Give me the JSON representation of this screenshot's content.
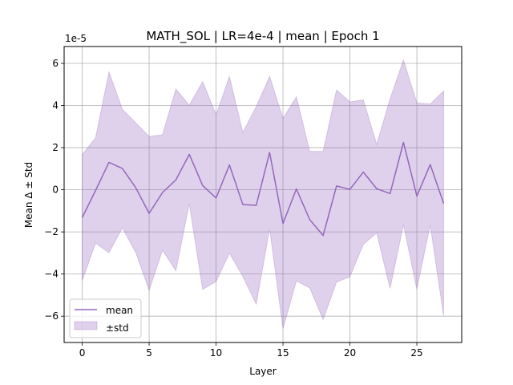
{
  "chart_data": {
    "type": "line",
    "title": "MATH_SOL | LR=4e-4 | mean | Epoch 1",
    "xlabel": "Layer",
    "ylabel": "Mean Δ ± Std",
    "y_offset_text": "1e-5",
    "xlim": [
      -1.35,
      28.35
    ],
    "ylim": [
      -7.25,
      6.8
    ],
    "xticks": [
      0,
      5,
      10,
      15,
      20,
      25
    ],
    "yticks": [
      -6,
      -4,
      -2,
      0,
      2,
      4,
      6
    ],
    "grid": true,
    "legend_position": "lower-left",
    "colors": {
      "line": "#9467bd",
      "band": "#9467bd",
      "grid": "#b0b0b0"
    },
    "x": [
      0,
      1,
      2,
      3,
      4,
      5,
      6,
      7,
      8,
      9,
      10,
      11,
      12,
      13,
      14,
      15,
      16,
      17,
      18,
      19,
      20,
      21,
      22,
      23,
      24,
      25,
      26,
      27
    ],
    "series": [
      {
        "name": "mean",
        "values": [
          -1.32,
          -0.03,
          1.3,
          1.01,
          0.1,
          -1.12,
          -0.13,
          0.47,
          1.68,
          0.2,
          -0.39,
          1.18,
          -0.7,
          -0.74,
          1.77,
          -1.6,
          0.04,
          -1.42,
          -2.17,
          0.18,
          0.02,
          0.84,
          0.05,
          -0.18,
          2.25,
          -0.3,
          1.2,
          -0.65
        ]
      }
    ],
    "band": {
      "name": "±std",
      "upper": [
        1.67,
        2.47,
        5.59,
        3.82,
        3.18,
        2.53,
        2.61,
        4.78,
        4.02,
        5.13,
        3.57,
        5.37,
        2.72,
        3.95,
        5.38,
        3.39,
        4.41,
        1.82,
        1.82,
        4.74,
        4.17,
        4.27,
        2.15,
        4.32,
        6.16,
        4.12,
        4.07,
        4.69
      ],
      "lower": [
        -4.31,
        -2.53,
        -2.99,
        -1.8,
        -2.98,
        -4.77,
        -2.87,
        -3.84,
        -0.66,
        -4.73,
        -4.35,
        -3.01,
        -4.12,
        -5.43,
        -1.84,
        -6.59,
        -4.33,
        -4.66,
        -6.16,
        -4.38,
        -4.13,
        -2.59,
        -2.05,
        -4.68,
        -1.66,
        -4.72,
        -1.67,
        -5.99
      ]
    },
    "legend": [
      "mean",
      "±std"
    ]
  }
}
